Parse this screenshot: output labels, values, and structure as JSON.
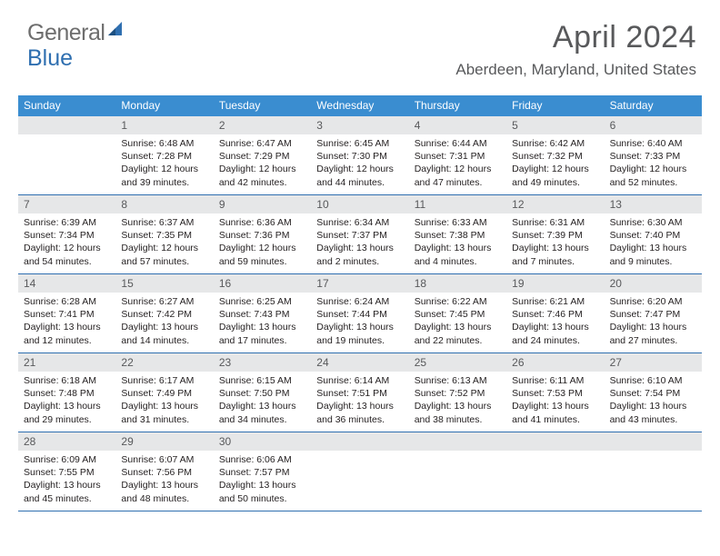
{
  "brand": {
    "part1": "General",
    "part2": "Blue"
  },
  "title": "April 2024",
  "location": "Aberdeen, Maryland, United States",
  "colors": {
    "header_bar": "#3a8dd0",
    "week_border": "#2f6fb0",
    "daynum_bg": "#e6e7e8",
    "title_color": "#58595b"
  },
  "weekdays": [
    "Sunday",
    "Monday",
    "Tuesday",
    "Wednesday",
    "Thursday",
    "Friday",
    "Saturday"
  ],
  "weeks": [
    [
      null,
      {
        "n": "1",
        "sr": "6:48 AM",
        "ss": "7:28 PM",
        "dl": "12 hours and 39 minutes."
      },
      {
        "n": "2",
        "sr": "6:47 AM",
        "ss": "7:29 PM",
        "dl": "12 hours and 42 minutes."
      },
      {
        "n": "3",
        "sr": "6:45 AM",
        "ss": "7:30 PM",
        "dl": "12 hours and 44 minutes."
      },
      {
        "n": "4",
        "sr": "6:44 AM",
        "ss": "7:31 PM",
        "dl": "12 hours and 47 minutes."
      },
      {
        "n": "5",
        "sr": "6:42 AM",
        "ss": "7:32 PM",
        "dl": "12 hours and 49 minutes."
      },
      {
        "n": "6",
        "sr": "6:40 AM",
        "ss": "7:33 PM",
        "dl": "12 hours and 52 minutes."
      }
    ],
    [
      {
        "n": "7",
        "sr": "6:39 AM",
        "ss": "7:34 PM",
        "dl": "12 hours and 54 minutes."
      },
      {
        "n": "8",
        "sr": "6:37 AM",
        "ss": "7:35 PM",
        "dl": "12 hours and 57 minutes."
      },
      {
        "n": "9",
        "sr": "6:36 AM",
        "ss": "7:36 PM",
        "dl": "12 hours and 59 minutes."
      },
      {
        "n": "10",
        "sr": "6:34 AM",
        "ss": "7:37 PM",
        "dl": "13 hours and 2 minutes."
      },
      {
        "n": "11",
        "sr": "6:33 AM",
        "ss": "7:38 PM",
        "dl": "13 hours and 4 minutes."
      },
      {
        "n": "12",
        "sr": "6:31 AM",
        "ss": "7:39 PM",
        "dl": "13 hours and 7 minutes."
      },
      {
        "n": "13",
        "sr": "6:30 AM",
        "ss": "7:40 PM",
        "dl": "13 hours and 9 minutes."
      }
    ],
    [
      {
        "n": "14",
        "sr": "6:28 AM",
        "ss": "7:41 PM",
        "dl": "13 hours and 12 minutes."
      },
      {
        "n": "15",
        "sr": "6:27 AM",
        "ss": "7:42 PM",
        "dl": "13 hours and 14 minutes."
      },
      {
        "n": "16",
        "sr": "6:25 AM",
        "ss": "7:43 PM",
        "dl": "13 hours and 17 minutes."
      },
      {
        "n": "17",
        "sr": "6:24 AM",
        "ss": "7:44 PM",
        "dl": "13 hours and 19 minutes."
      },
      {
        "n": "18",
        "sr": "6:22 AM",
        "ss": "7:45 PM",
        "dl": "13 hours and 22 minutes."
      },
      {
        "n": "19",
        "sr": "6:21 AM",
        "ss": "7:46 PM",
        "dl": "13 hours and 24 minutes."
      },
      {
        "n": "20",
        "sr": "6:20 AM",
        "ss": "7:47 PM",
        "dl": "13 hours and 27 minutes."
      }
    ],
    [
      {
        "n": "21",
        "sr": "6:18 AM",
        "ss": "7:48 PM",
        "dl": "13 hours and 29 minutes."
      },
      {
        "n": "22",
        "sr": "6:17 AM",
        "ss": "7:49 PM",
        "dl": "13 hours and 31 minutes."
      },
      {
        "n": "23",
        "sr": "6:15 AM",
        "ss": "7:50 PM",
        "dl": "13 hours and 34 minutes."
      },
      {
        "n": "24",
        "sr": "6:14 AM",
        "ss": "7:51 PM",
        "dl": "13 hours and 36 minutes."
      },
      {
        "n": "25",
        "sr": "6:13 AM",
        "ss": "7:52 PM",
        "dl": "13 hours and 38 minutes."
      },
      {
        "n": "26",
        "sr": "6:11 AM",
        "ss": "7:53 PM",
        "dl": "13 hours and 41 minutes."
      },
      {
        "n": "27",
        "sr": "6:10 AM",
        "ss": "7:54 PM",
        "dl": "13 hours and 43 minutes."
      }
    ],
    [
      {
        "n": "28",
        "sr": "6:09 AM",
        "ss": "7:55 PM",
        "dl": "13 hours and 45 minutes."
      },
      {
        "n": "29",
        "sr": "6:07 AM",
        "ss": "7:56 PM",
        "dl": "13 hours and 48 minutes."
      },
      {
        "n": "30",
        "sr": "6:06 AM",
        "ss": "7:57 PM",
        "dl": "13 hours and 50 minutes."
      },
      null,
      null,
      null,
      null
    ]
  ],
  "labels": {
    "sunrise": "Sunrise:",
    "sunset": "Sunset:",
    "daylight": "Daylight:"
  }
}
